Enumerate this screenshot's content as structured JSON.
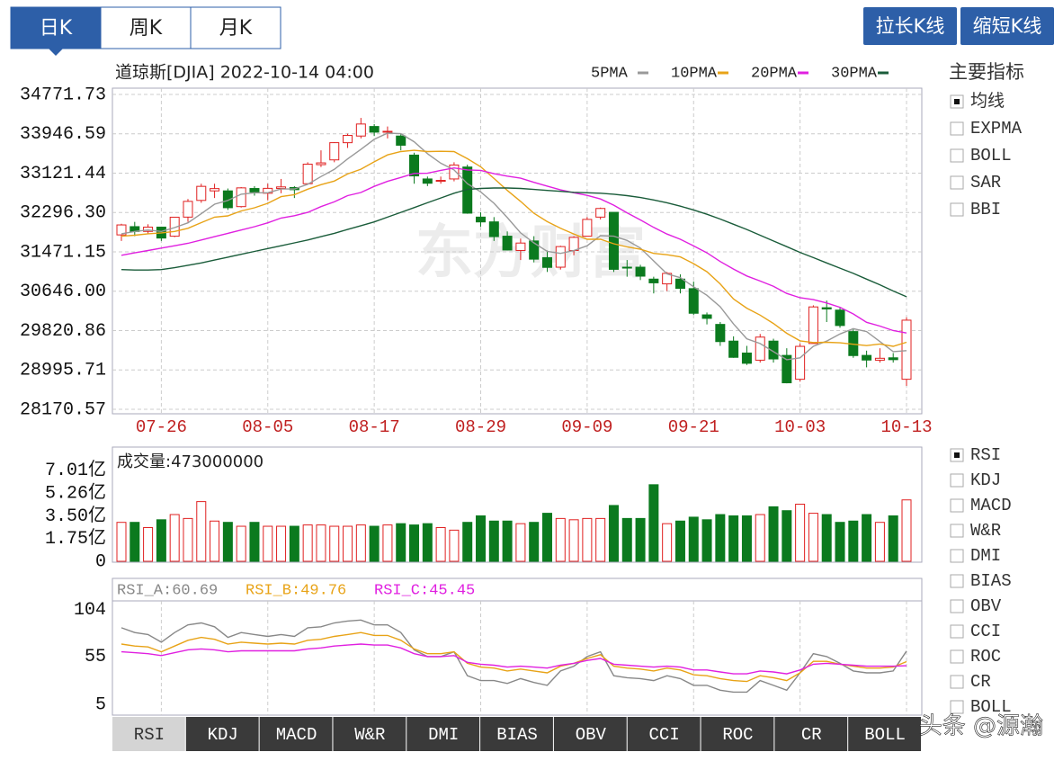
{
  "tabs": {
    "items": [
      "日K",
      "周K",
      "月K"
    ],
    "selected": 0
  },
  "buttons": [
    "拉长K线",
    "缩短K线"
  ],
  "indicators": {
    "title": "主要指标",
    "items": [
      {
        "label": "均线",
        "checked": true
      },
      {
        "label": "EXPMA",
        "checked": false
      },
      {
        "label": "BOLL",
        "checked": false
      },
      {
        "label": "SAR",
        "checked": false
      },
      {
        "label": "BBI",
        "checked": false
      }
    ]
  },
  "sub_indicators": [
    {
      "label": "RSI",
      "checked": true
    },
    {
      "label": "KDJ",
      "checked": false
    },
    {
      "label": "MACD",
      "checked": false
    },
    {
      "label": "W&R",
      "checked": false
    },
    {
      "label": "DMI",
      "checked": false
    },
    {
      "label": "BIAS",
      "checked": false
    },
    {
      "label": "OBV",
      "checked": false
    },
    {
      "label": "CCI",
      "checked": false
    },
    {
      "label": "ROC",
      "checked": false
    },
    {
      "label": "CR",
      "checked": false
    },
    {
      "label": "BOLL",
      "checked": false
    }
  ],
  "bottom_tabs": {
    "items": [
      "RSI",
      "KDJ",
      "MACD",
      "W&R",
      "DMI",
      "BIAS",
      "OBV",
      "CCI",
      "ROC",
      "CR",
      "BOLL"
    ],
    "selected": 0
  },
  "watermark": "东方财富",
  "credit": "头条 @源瀚",
  "chart_data": [
    {
      "type": "candlestick",
      "title": "道琼斯[DJIA] 2022-10-14 04:00",
      "categories": [
        null,
        null,
        null,
        "07-26",
        null,
        null,
        null,
        null,
        null,
        null,
        null,
        "08-05",
        null,
        null,
        null,
        null,
        null,
        null,
        null,
        "08-17",
        null,
        null,
        null,
        null,
        null,
        null,
        null,
        "08-29",
        null,
        null,
        null,
        null,
        null,
        null,
        null,
        "09-09",
        null,
        null,
        null,
        null,
        null,
        null,
        null,
        "09-21",
        null,
        null,
        null,
        null,
        null,
        null,
        null,
        "10-03",
        null,
        null,
        null,
        null,
        null,
        null,
        null,
        "10-13"
      ],
      "open": [
        31827,
        32000,
        31900,
        31990,
        31800,
        32200,
        32550,
        32750,
        32750,
        32420,
        32800,
        32700,
        32800,
        32820,
        32900,
        33300,
        33400,
        33760,
        33900,
        34100,
        33990,
        33900,
        33500,
        33000,
        32950,
        33000,
        33250,
        32200,
        32100,
        31800,
        31500,
        31700,
        31350,
        31150,
        31500,
        31800,
        32200,
        32300,
        31150,
        31150,
        30900,
        30800,
        30900,
        30700,
        30150,
        29950,
        29600,
        29350,
        29200,
        29600,
        29300,
        28800,
        29550,
        30300,
        30250,
        29800,
        29300,
        29200,
        29250,
        28800
      ],
      "high": [
        32060,
        32100,
        32050,
        32000,
        32200,
        32580,
        32900,
        32900,
        32800,
        32830,
        32850,
        32900,
        33000,
        32850,
        33350,
        33600,
        33770,
        33950,
        34280,
        34150,
        34100,
        33950,
        33550,
        33050,
        33050,
        33350,
        33300,
        32300,
        32200,
        31900,
        31750,
        31800,
        31500,
        31600,
        31800,
        32200,
        32400,
        32300,
        31300,
        31200,
        30950,
        31050,
        31000,
        30850,
        30200,
        30000,
        29700,
        29500,
        29750,
        29650,
        29450,
        29550,
        30350,
        30450,
        30300,
        29850,
        29400,
        29450,
        29350,
        30100
      ],
      "low": [
        31700,
        31800,
        31850,
        31700,
        31780,
        32100,
        32500,
        32600,
        32350,
        32400,
        32650,
        32550,
        32700,
        32600,
        32900,
        33250,
        33350,
        33650,
        33850,
        33900,
        33850,
        33600,
        32900,
        32850,
        32900,
        32950,
        32270,
        32000,
        31700,
        31500,
        31300,
        31250,
        31050,
        31100,
        31400,
        31800,
        32150,
        31050,
        30950,
        30880,
        30600,
        30650,
        30600,
        30150,
        29950,
        29500,
        29250,
        29100,
        29150,
        29150,
        28715,
        28750,
        29550,
        30000,
        29880,
        29250,
        29050,
        29150,
        29150,
        28660
      ],
      "close": [
        32036,
        31899,
        31990,
        31761,
        32198,
        32530,
        32845,
        32798,
        32397,
        32813,
        32727,
        32803,
        32833,
        32775,
        33310,
        33337,
        33761,
        33913,
        34152,
        33981,
        33999,
        33707,
        33064,
        32910,
        32970,
        33292,
        32283,
        32099,
        31791,
        31510,
        31656,
        31318,
        31146,
        31582,
        31775,
        32152,
        32381,
        31105,
        31136,
        30962,
        30822,
        31020,
        30706,
        30184,
        30077,
        29590,
        29260,
        29135,
        29684,
        29226,
        28726,
        29490,
        30317,
        30274,
        29927,
        29297,
        29203,
        29240,
        29211,
        30039
      ],
      "up_color": "#e02020",
      "down_color": "#0b7a1e",
      "series": [
        {
          "name": "5PMA",
          "color": "#999999",
          "values": [
            31850,
            31900,
            31930,
            31900,
            31980,
            32080,
            32270,
            32470,
            32550,
            32680,
            32710,
            32710,
            32790,
            32790,
            32890,
            33050,
            33200,
            33420,
            33620,
            33830,
            33960,
            33950,
            33780,
            33530,
            33330,
            33190,
            32900,
            32730,
            32490,
            32190,
            31870,
            31660,
            31480,
            31440,
            31500,
            31600,
            31810,
            31800,
            31710,
            31550,
            31280,
            31010,
            30930,
            30740,
            30560,
            30320,
            29960,
            29650,
            29550,
            29380,
            29210,
            29250,
            29490,
            29600,
            29750,
            29860,
            29800,
            29590,
            29380,
            29400
          ]
        },
        {
          "name": "10PMA",
          "color": "#e8a317",
          "values": [
            31800,
            31820,
            31850,
            31870,
            31900,
            31965,
            32085,
            32200,
            32225,
            32330,
            32395,
            32490,
            32630,
            32670,
            32785,
            32880,
            32955,
            33105,
            33205,
            33360,
            33505,
            33575,
            33600,
            33575,
            33580,
            33575,
            33425,
            33255,
            33010,
            32760,
            32530,
            32280,
            32105,
            31965,
            31845,
            31735,
            31735,
            31640,
            31575,
            31525,
            31440,
            31410,
            31365,
            31225,
            31055,
            30800,
            30485,
            30290,
            30145,
            29970,
            29765,
            29605,
            29570,
            29575,
            29565,
            29535,
            29505,
            29540,
            29490,
            29575
          ]
        },
        {
          "name": "20PMA",
          "color": "#e020e0",
          "values": [
            31400,
            31450,
            31500,
            31550,
            31600,
            31650,
            31720,
            31790,
            31860,
            31930,
            32000,
            32080,
            32180,
            32230,
            32300,
            32420,
            32520,
            32650,
            32715,
            32845,
            32950,
            33030,
            33115,
            33120,
            33180,
            33230,
            33190,
            33180,
            33110,
            33060,
            33015,
            32930,
            32850,
            32770,
            32710,
            32655,
            32580,
            32450,
            32290,
            32140,
            31985,
            31845,
            31735,
            31595,
            31450,
            31270,
            31110,
            30965,
            30860,
            30750,
            30600,
            30510,
            30470,
            30400,
            30310,
            30170,
            29995,
            29915,
            29820,
            29770
          ]
        },
        {
          "name": "30PMA",
          "color": "#1a5c3a",
          "values": [
            31100,
            31090,
            31090,
            31100,
            31140,
            31190,
            31240,
            31300,
            31360,
            31420,
            31480,
            31540,
            31600,
            31660,
            31720,
            31790,
            31860,
            31940,
            32020,
            32100,
            32200,
            32300,
            32400,
            32500,
            32600,
            32700,
            32780,
            32800,
            32810,
            32810,
            32800,
            32780,
            32760,
            32740,
            32720,
            32710,
            32700,
            32680,
            32650,
            32610,
            32560,
            32500,
            32430,
            32350,
            32260,
            32160,
            32050,
            31940,
            31820,
            31700,
            31580,
            31460,
            31350,
            31240,
            31130,
            31020,
            30900,
            30780,
            30650,
            30530
          ]
        }
      ],
      "ylim": [
        28170.57,
        34771.73
      ],
      "yticks": [
        34771.73,
        33946.59,
        33121.44,
        {
          "value": 32296.3,
          "label": "32296.30"
        },
        31471.15,
        {
          "value": 30646,
          "label": "30646.00"
        },
        29820.86,
        28995.71,
        28170.57
      ],
      "grid": true
    },
    {
      "type": "bar",
      "title": "成交量:473000000",
      "values": [
        300000000,
        300000000,
        260000000,
        320000000,
        360000000,
        330000000,
        460000000,
        310000000,
        300000000,
        270000000,
        300000000,
        270000000,
        270000000,
        270000000,
        280000000,
        280000000,
        270000000,
        270000000,
        280000000,
        270000000,
        280000000,
        290000000,
        280000000,
        290000000,
        260000000,
        240000000,
        300000000,
        350000000,
        310000000,
        310000000,
        290000000,
        300000000,
        370000000,
        330000000,
        320000000,
        330000000,
        330000000,
        430000000,
        330000000,
        330000000,
        590000000,
        290000000,
        310000000,
        340000000,
        320000000,
        360000000,
        350000000,
        350000000,
        360000000,
        420000000,
        390000000,
        440000000,
        370000000,
        360000000,
        300000000,
        310000000,
        360000000,
        300000000,
        350000000,
        473000000
      ],
      "ylim": [
        0,
        880000000
      ],
      "yticks": [
        0,
        {
          "value": 175000000,
          "label": "1.75亿"
        },
        {
          "value": 350000000,
          "label": "3.50亿"
        },
        {
          "value": 526000000,
          "label": "5.26亿"
        },
        {
          "value": 701000000,
          "label": "7.01亿"
        }
      ],
      "grid": false
    },
    {
      "type": "line",
      "series": [
        {
          "name": "RSI_A:60.69",
          "color": "#888888",
          "values": [
            85,
            80,
            78,
            70,
            80,
            88,
            90,
            86,
            75,
            80,
            78,
            76,
            78,
            76,
            85,
            86,
            90,
            92,
            93,
            88,
            88,
            80,
            62,
            55,
            55,
            60,
            35,
            30,
            30,
            27,
            32,
            28,
            25,
            40,
            45,
            55,
            60,
            35,
            33,
            32,
            30,
            35,
            32,
            25,
            25,
            20,
            18,
            18,
            30,
            25,
            20,
            38,
            58,
            55,
            48,
            40,
            38,
            38,
            40,
            60.69
          ]
        },
        {
          "name": "RSI_B:49.76",
          "color": "#e8a317",
          "values": [
            68,
            66,
            65,
            60,
            66,
            72,
            75,
            73,
            68,
            70,
            69,
            68,
            69,
            68,
            72,
            73,
            76,
            78,
            80,
            77,
            77,
            72,
            63,
            58,
            58,
            60,
            48,
            44,
            43,
            40,
            42,
            40,
            38,
            45,
            48,
            53,
            57,
            45,
            43,
            42,
            40,
            43,
            41,
            36,
            35,
            32,
            30,
            29,
            35,
            33,
            30,
            38,
            50,
            50,
            47,
            45,
            43,
            43,
            44,
            49.76
          ]
        },
        {
          "name": "RSI_C:45.45",
          "color": "#e020e0",
          "values": [
            60,
            59,
            58,
            56,
            59,
            62,
            63,
            62,
            60,
            61,
            61,
            61,
            61,
            61,
            63,
            64,
            66,
            67,
            68,
            67,
            67,
            64,
            58,
            55,
            55,
            56,
            49,
            47,
            46,
            44,
            45,
            44,
            43,
            46,
            48,
            51,
            53,
            47,
            46,
            45,
            44,
            45,
            44,
            41,
            41,
            39,
            37,
            37,
            40,
            39,
            37,
            41,
            47,
            48,
            47,
            46,
            45,
            45,
            45,
            45.45
          ]
        }
      ],
      "ylim": [
        -6,
        113
      ],
      "yticks": [
        5,
        55,
        104
      ],
      "grid": false
    }
  ]
}
